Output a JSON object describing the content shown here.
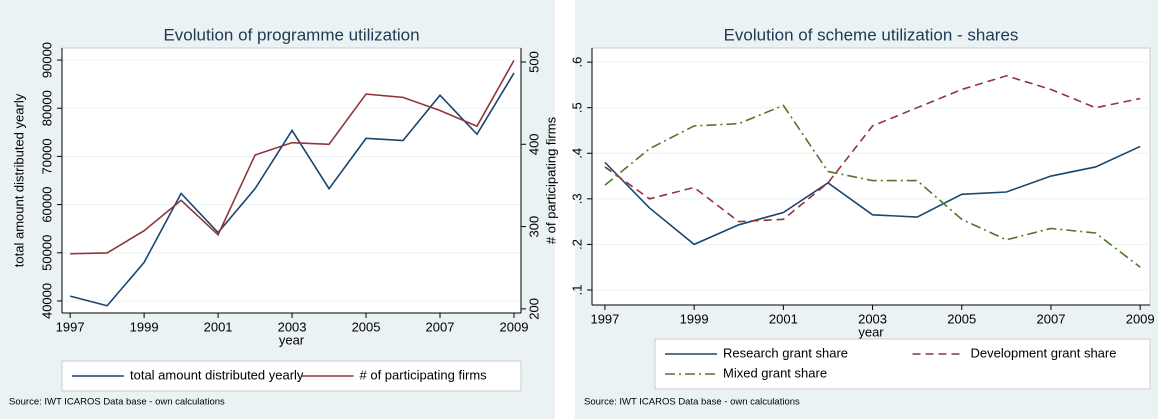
{
  "chart_data": [
    {
      "type": "line",
      "title": "Evolution of programme utilization",
      "x": [
        1997,
        1998,
        1999,
        2000,
        2001,
        2002,
        2003,
        2004,
        2005,
        2006,
        2007,
        2008,
        2009
      ],
      "xlim": [
        1996.78,
        2009.19
      ],
      "xticks": [
        1997,
        1999,
        2001,
        2003,
        2005,
        2007,
        2009
      ],
      "xlabel": "year",
      "ylabel": "total amount distributed yearly",
      "ylim": [
        37500,
        92500
      ],
      "yticks": [
        40000,
        50000,
        60000,
        70000,
        80000,
        90000
      ],
      "y2label": "# of participating firms",
      "y2lim": [
        195,
        517
      ],
      "y2ticks": [
        200,
        300,
        400,
        500
      ],
      "series": [
        {
          "name": "total amount distributed yearly",
          "color": "#1a476f",
          "style": "solid",
          "values": [
            41000,
            39000,
            48000,
            62300,
            54200,
            63300,
            75400,
            63300,
            73750,
            73300,
            82700,
            74600,
            87300
          ]
        },
        {
          "name": "# of participating firms",
          "color": "#90353b",
          "style": "solid",
          "axis": "y2",
          "values": [
            267,
            268,
            295,
            332,
            290,
            387,
            402,
            400,
            461,
            457,
            441,
            422,
            502
          ]
        }
      ],
      "legend": "bottom",
      "legend_columns": 2,
      "note": "Source: IWT ICAROS Data base - own calculations"
    },
    {
      "type": "line",
      "title": "Evolution of scheme utilization - shares",
      "x": [
        1997,
        1998,
        1999,
        2000,
        2001,
        2002,
        2003,
        2004,
        2005,
        2006,
        2007,
        2008,
        2009
      ],
      "xlim": [
        1996.71,
        2009.22
      ],
      "xticks": [
        1997,
        1999,
        2001,
        2003,
        2005,
        2007,
        2009
      ],
      "xlabel": "year",
      "ylim": [
        0.067,
        0.631
      ],
      "yticks": [
        {
          "value": 0.1,
          "label": ".1"
        },
        {
          "value": 0.2,
          "label": ".2"
        },
        {
          "value": 0.3,
          "label": ".3"
        },
        {
          "value": 0.4,
          "label": ".4"
        },
        {
          "value": 0.5,
          "label": ".5"
        },
        {
          "value": 0.6,
          "label": ".6"
        }
      ],
      "series": [
        {
          "name": "Research grant share",
          "color": "#1a476f",
          "style": "solid",
          "values": [
            0.38,
            0.28,
            0.2,
            0.243,
            0.27,
            0.335,
            0.265,
            0.26,
            0.31,
            0.315,
            0.35,
            0.37,
            0.415
          ]
        },
        {
          "name": "Development grant share",
          "color": "#90353b",
          "style": "dashed",
          "values": [
            0.37,
            0.3,
            0.325,
            0.25,
            0.255,
            0.335,
            0.46,
            0.5,
            0.54,
            0.57,
            0.54,
            0.5,
            0.52
          ]
        },
        {
          "name": "Mixed grant share",
          "color": "#55752f",
          "style": "dashdot",
          "values": [
            0.33,
            0.41,
            0.46,
            0.465,
            0.505,
            0.36,
            0.34,
            0.34,
            0.255,
            0.21,
            0.235,
            0.225,
            0.15
          ]
        }
      ],
      "legend": "bottom",
      "legend_columns": 2,
      "note": "Source: IWT ICAROS Data base - own calculations"
    }
  ]
}
